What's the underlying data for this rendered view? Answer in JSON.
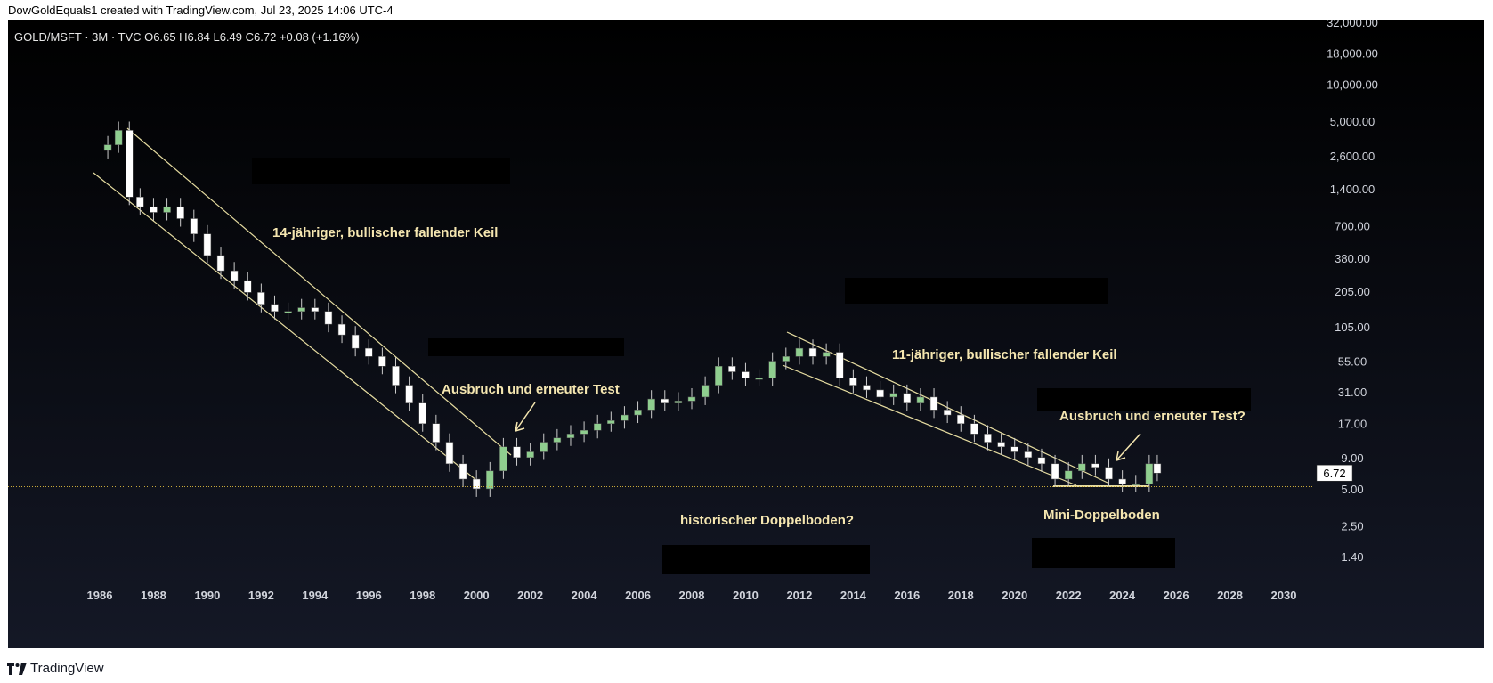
{
  "header": {
    "credit": "DowGoldEquals1 created with TradingView.com, Jul 23, 2025 14:06 UTC-4"
  },
  "legend": {
    "text": "GOLD/MSFT · 3M · TVC  O6.65  H6.84  L6.49  C6.72  +0.08 (+1.16%)"
  },
  "footer": {
    "brand": "TradingView"
  },
  "colors": {
    "background": "#0b0d13",
    "up": "#8fce8f",
    "down": "#ffffff",
    "trendline": "#e6dca0",
    "annotation": "#f5e6b0",
    "price_line": "#c8a93a"
  },
  "chart_data": {
    "type": "candlestick",
    "symbol": "GOLD/MSFT",
    "interval": "3M",
    "scale": "log",
    "x_ticks": [
      1986,
      1988,
      1990,
      1992,
      1994,
      1996,
      1998,
      2000,
      2002,
      2004,
      2006,
      2008,
      2010,
      2012,
      2014,
      2016,
      2018,
      2020,
      2022,
      2024,
      2026,
      2028,
      2030
    ],
    "y_ticks": [
      "32,000.00",
      "18,000.00",
      "10,000.00",
      "5,000.00",
      "2,600.00",
      "1,400.00",
      "700.00",
      "380.00",
      "205.00",
      "105.00",
      "55.00",
      "31.00",
      "17.00",
      "9.00",
      "5.00",
      "2.50",
      "1.40"
    ],
    "last_price": "6.72",
    "annotations": [
      "14-jähriger, bullischer fallender Keil",
      "Ausbruch und erneuter Test",
      "11-jähriger, bullischer fallender Keil",
      "Ausbruch und erneuter Test?",
      "historischer Doppelboden?",
      "Mini-Doppelboden"
    ],
    "series_approx": [
      [
        1986.3,
        3200
      ],
      [
        1986.7,
        4200
      ],
      [
        1987.1,
        1200
      ],
      [
        1987.5,
        1000
      ],
      [
        1988,
        900
      ],
      [
        1988.5,
        1000
      ],
      [
        1989,
        800
      ],
      [
        1989.5,
        600
      ],
      [
        1990,
        400
      ],
      [
        1990.5,
        300
      ],
      [
        1991,
        250
      ],
      [
        1991.5,
        200
      ],
      [
        1992,
        160
      ],
      [
        1992.5,
        140
      ],
      [
        1993,
        140
      ],
      [
        1993.5,
        150
      ],
      [
        1994,
        140
      ],
      [
        1994.5,
        110
      ],
      [
        1995,
        90
      ],
      [
        1995.5,
        70
      ],
      [
        1996,
        60
      ],
      [
        1996.5,
        50
      ],
      [
        1997,
        35
      ],
      [
        1997.5,
        25
      ],
      [
        1998,
        17
      ],
      [
        1998.5,
        12
      ],
      [
        1999,
        8
      ],
      [
        1999.5,
        6
      ],
      [
        2000,
        5
      ],
      [
        2000.5,
        7
      ],
      [
        2001,
        11
      ],
      [
        2001.5,
        9
      ],
      [
        2002,
        10
      ],
      [
        2002.5,
        12
      ],
      [
        2003,
        13
      ],
      [
        2003.5,
        14
      ],
      [
        2004,
        15
      ],
      [
        2004.5,
        17
      ],
      [
        2005,
        18
      ],
      [
        2005.5,
        20
      ],
      [
        2006,
        22
      ],
      [
        2006.5,
        27
      ],
      [
        2007,
        25
      ],
      [
        2007.5,
        26
      ],
      [
        2008,
        28
      ],
      [
        2008.5,
        35
      ],
      [
        2009,
        50
      ],
      [
        2009.5,
        45
      ],
      [
        2010,
        40
      ],
      [
        2010.5,
        40
      ],
      [
        2011,
        55
      ],
      [
        2011.5,
        60
      ],
      [
        2012,
        70
      ],
      [
        2012.5,
        60
      ],
      [
        2013,
        65
      ],
      [
        2013.5,
        40
      ],
      [
        2014,
        35
      ],
      [
        2014.5,
        32
      ],
      [
        2015,
        28
      ],
      [
        2015.5,
        30
      ],
      [
        2016,
        25
      ],
      [
        2016.5,
        28
      ],
      [
        2017,
        22
      ],
      [
        2017.5,
        20
      ],
      [
        2018,
        17
      ],
      [
        2018.5,
        14
      ],
      [
        2019,
        12
      ],
      [
        2019.5,
        11
      ],
      [
        2020,
        10
      ],
      [
        2020.5,
        9
      ],
      [
        2021,
        8
      ],
      [
        2021.5,
        6
      ],
      [
        2022,
        7
      ],
      [
        2022.5,
        8
      ],
      [
        2023,
        7.5
      ],
      [
        2023.5,
        6
      ],
      [
        2024,
        5.5
      ],
      [
        2024.5,
        5.5
      ],
      [
        2025,
        8
      ],
      [
        2025.3,
        6.72
      ]
    ]
  }
}
